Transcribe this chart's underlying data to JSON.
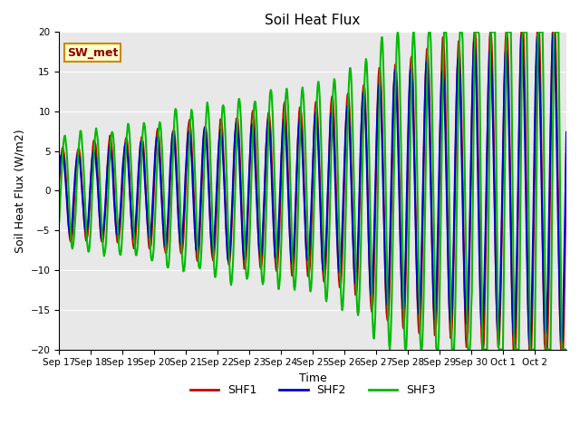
{
  "title": "Soil Heat Flux",
  "ylabel": "Soil Heat Flux (W/m2)",
  "xlabel": "Time",
  "ylim": [
    -20,
    20
  ],
  "yticks": [
    -20,
    -15,
    -10,
    -5,
    0,
    5,
    10,
    15,
    20
  ],
  "xtick_labels": [
    "Sep 17",
    "Sep 18",
    "Sep 19",
    "Sep 20",
    "Sep 21",
    "Sep 22",
    "Sep 23",
    "Sep 24",
    "Sep 25",
    "Sep 26",
    "Sep 27",
    "Sep 28",
    "Sep 29",
    "Sep 30",
    "Oct 1",
    "Oct 2"
  ],
  "line_colors": {
    "SHF1": "#cc0000",
    "SHF2": "#0000cc",
    "SHF3": "#00bb00"
  },
  "line_widths": {
    "SHF1": 1.5,
    "SHF2": 1.5,
    "SHF3": 1.5
  },
  "bg_color": "#e8e8e8",
  "annotation_text": "SW_met",
  "annotation_bg": "#ffffcc",
  "annotation_edge": "#cc8800"
}
